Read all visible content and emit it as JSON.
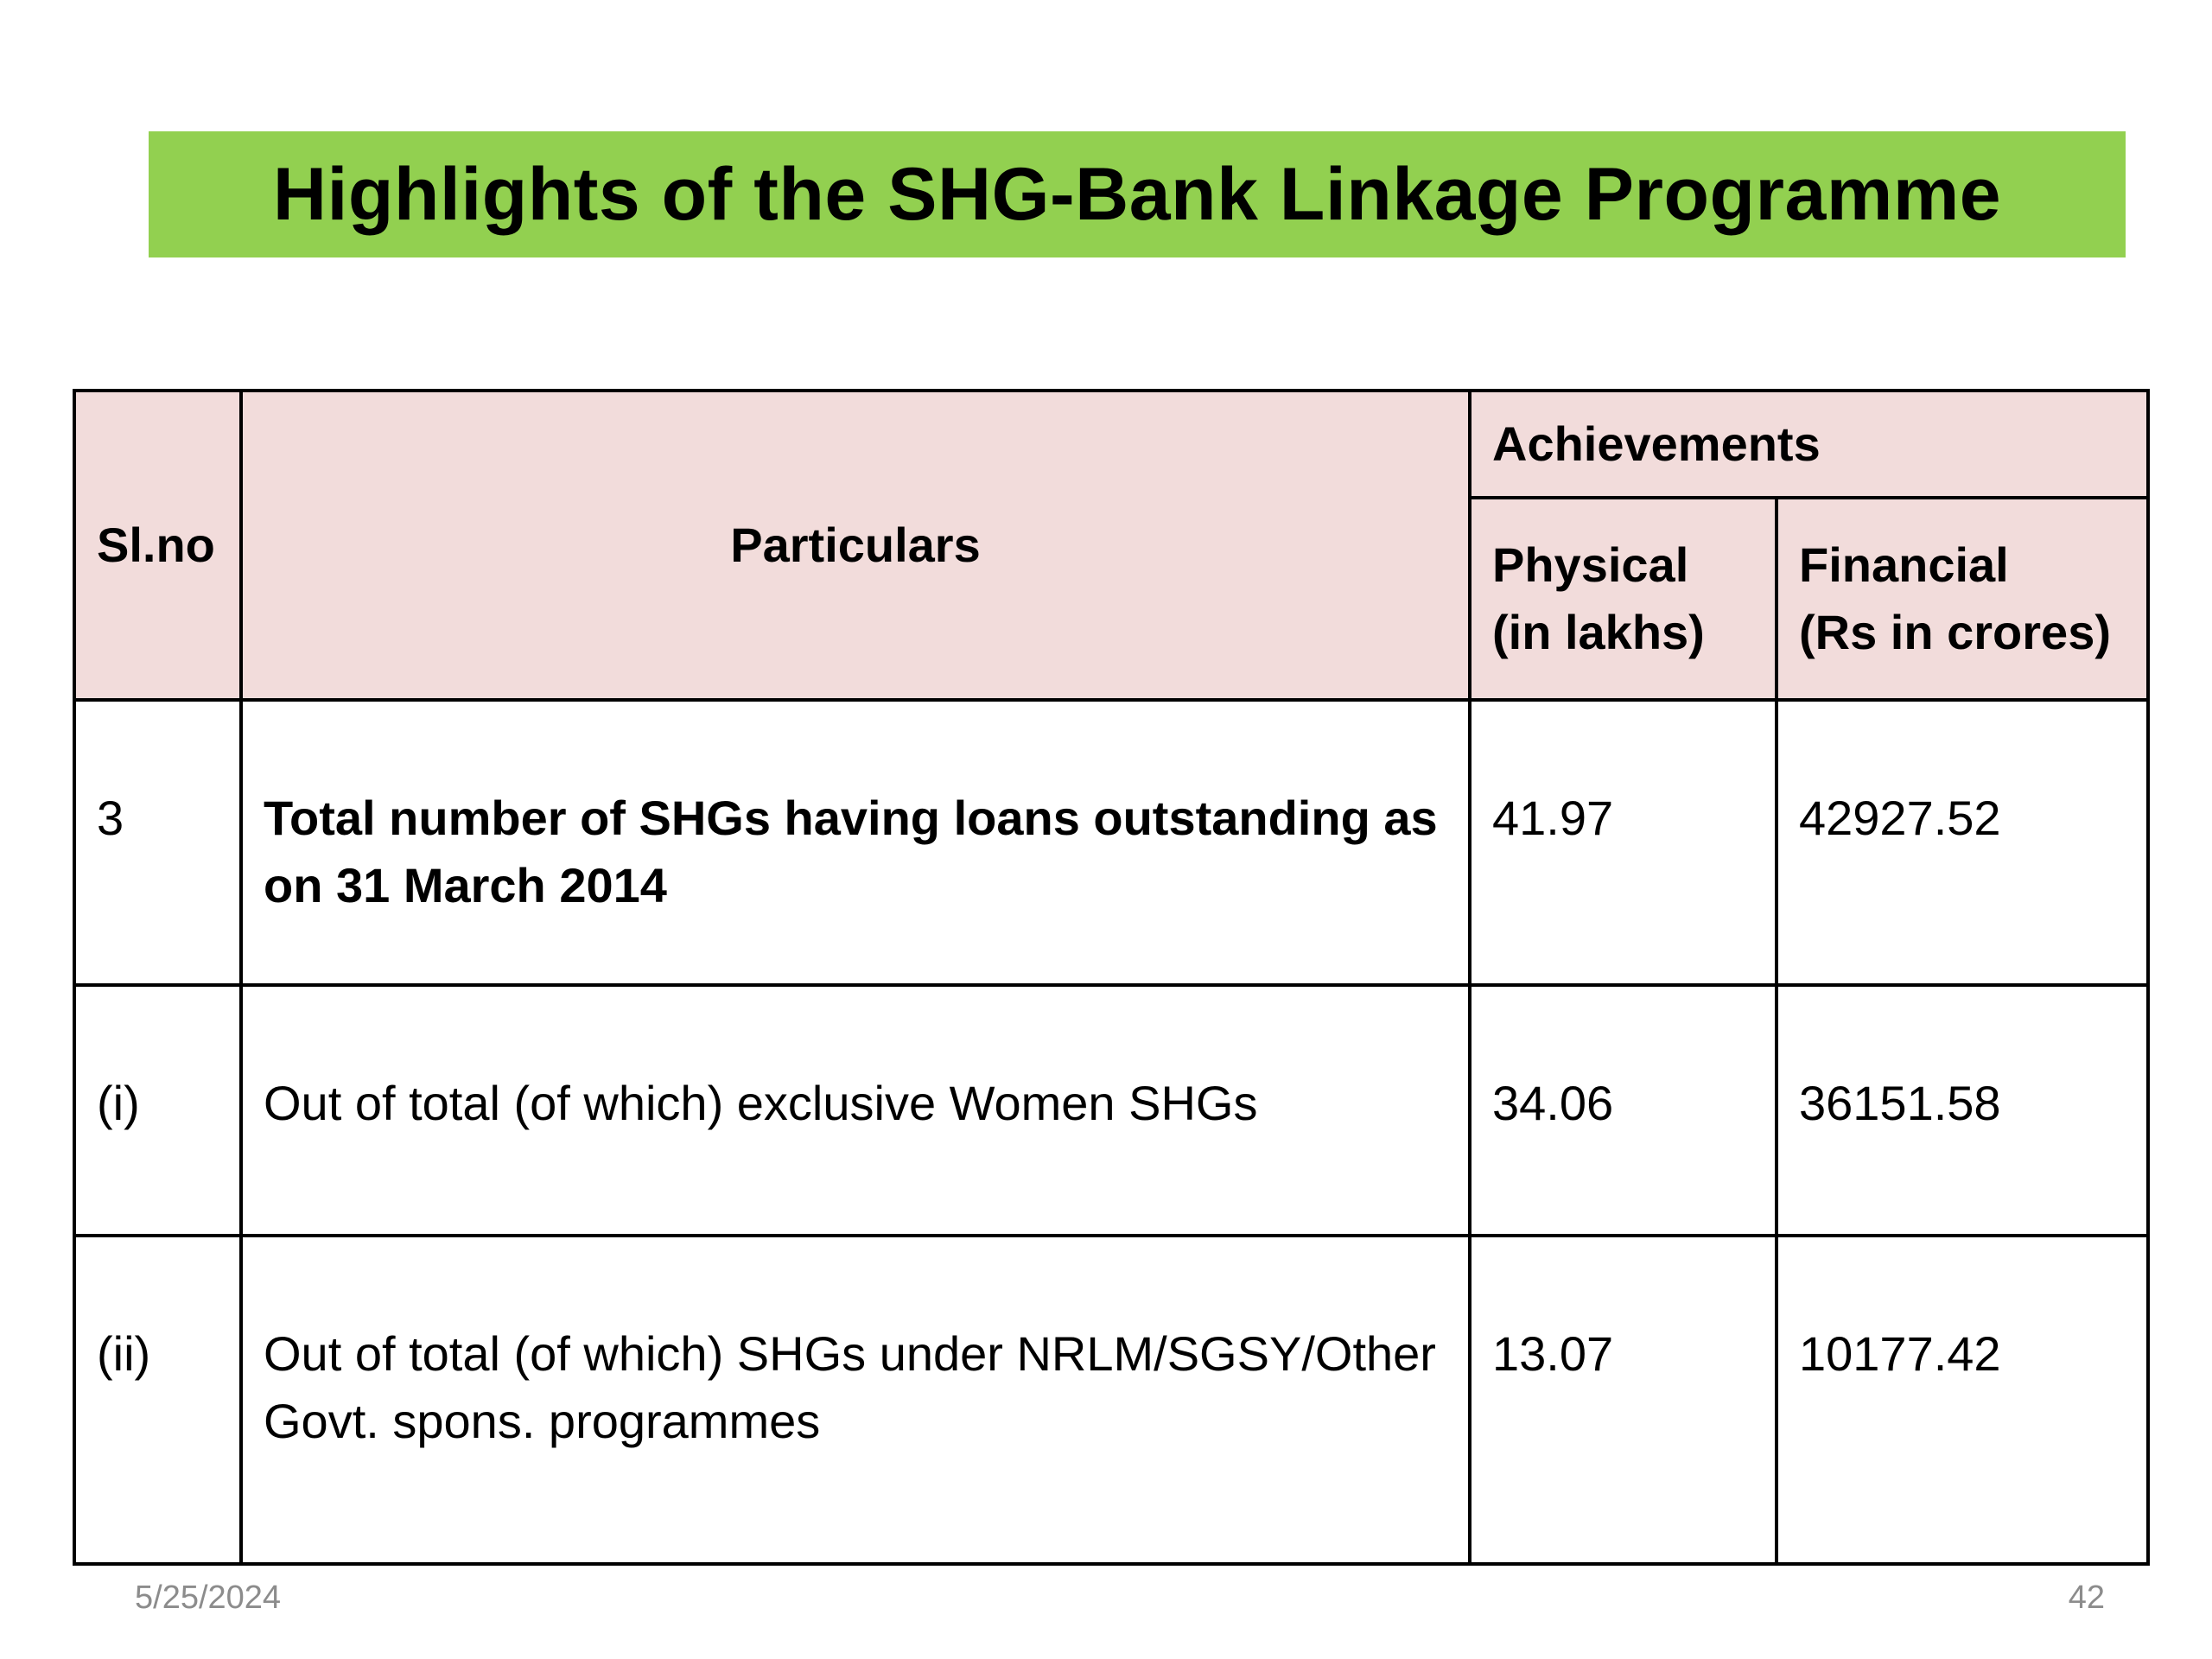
{
  "title": "Highlights of the SHG-Bank Linkage Programme",
  "colors": {
    "title_bar": "#92d050",
    "header_background": "#f2dcdb"
  },
  "table": {
    "headers": {
      "sl_no": "Sl.no",
      "particulars": "Particulars",
      "achievements": "Achievements",
      "physical": "Physical\n(in lakhs)",
      "physical_line1": "Physical",
      "physical_line2": "(in lakhs)",
      "financial_line1": "Financial",
      "financial_line2": "(Rs in crores)"
    },
    "rows": [
      {
        "sl_no": "3",
        "particulars": "Total number of SHGs having loans outstanding as on 31 March 2014",
        "physical": "41.97",
        "financial": "42927.52"
      },
      {
        "sl_no": "(i)",
        "particulars": "Out of total (of which) exclusive Women SHGs",
        "physical": "34.06",
        "financial": "36151.58"
      },
      {
        "sl_no": "(ii)",
        "particulars": "Out of total (of which) SHGs under NRLM/SGSY/Other Govt. spons. programmes",
        "physical": "13.07",
        "financial": "10177.42"
      }
    ]
  },
  "footer": {
    "date": "5/25/2024",
    "page_number": "42"
  }
}
